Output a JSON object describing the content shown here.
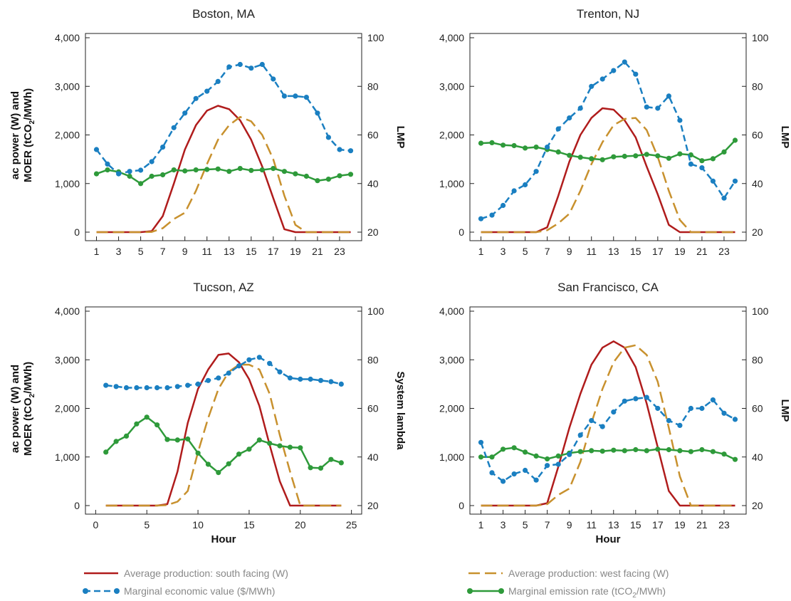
{
  "colors": {
    "south": "#b01c1c",
    "west": "#c8912e",
    "econ": "#1a7fc1",
    "emission": "#2e9a3a",
    "axis": "#222222"
  },
  "legend": {
    "south": "Average production: south facing (W)",
    "west": "Average production: west facing (W)",
    "econ": "Marginal economic value ($/MWh)",
    "emission_pre": "Marginal emission rate (tCO",
    "emission_sub": "2",
    "emission_post": "/MWh)"
  },
  "left_label": {
    "line1": "ac power (W) and",
    "line2_pre": "MOER (tCO",
    "line2_sub": "2",
    "line2_post": "/MWh)"
  },
  "chart_data": [
    {
      "type": "line",
      "title": "Boston, MA",
      "xlabel": "",
      "ylabel_left": "ac power (W) and MOER (tCO2/MWh)",
      "ylabel_right": "LMP",
      "x": [
        1,
        2,
        3,
        4,
        5,
        6,
        7,
        8,
        9,
        10,
        11,
        12,
        13,
        14,
        15,
        16,
        17,
        18,
        19,
        20,
        21,
        22,
        23,
        24
      ],
      "xticks": [
        1,
        3,
        5,
        7,
        9,
        11,
        13,
        15,
        17,
        19,
        21,
        23
      ],
      "xlim": [
        0,
        25
      ],
      "ylim_left": [
        0,
        4000
      ],
      "ylim_right": [
        20,
        100
      ],
      "yticks_left": [
        "0",
        "1,000",
        "2,000",
        "3,000",
        "4,000"
      ],
      "yticks_right": [
        "20",
        "40",
        "60",
        "80",
        "100"
      ],
      "series": [
        {
          "name": "Average production: south facing (W)",
          "axis": "left",
          "values": [
            0,
            0,
            0,
            0,
            0,
            20,
            330,
            1000,
            1700,
            2200,
            2500,
            2600,
            2530,
            2300,
            1900,
            1350,
            700,
            60,
            0,
            0,
            0,
            0,
            0,
            0
          ]
        },
        {
          "name": "Average production: west facing (W)",
          "axis": "left",
          "values": [
            0,
            0,
            0,
            0,
            0,
            5,
            80,
            270,
            400,
            850,
            1400,
            1900,
            2200,
            2370,
            2280,
            2000,
            1500,
            750,
            150,
            0,
            0,
            0,
            0,
            0
          ]
        },
        {
          "name": "Marginal economic value ($/MWh)",
          "axis": "right",
          "values": [
            54,
            48,
            44,
            45,
            45.5,
            49,
            55,
            63,
            69,
            75,
            78,
            82,
            88,
            89,
            87.5,
            89,
            83,
            76,
            76,
            75.5,
            69,
            59,
            54,
            53.5
          ]
        },
        {
          "name": "Marginal emission rate (tCO2/MWh)",
          "axis": "left",
          "values": [
            1200,
            1280,
            1240,
            1150,
            1000,
            1150,
            1180,
            1280,
            1260,
            1280,
            1290,
            1300,
            1250,
            1310,
            1270,
            1280,
            1310,
            1250,
            1200,
            1150,
            1060,
            1090,
            1160,
            1190
          ]
        }
      ]
    },
    {
      "type": "line",
      "title": "Trenton, NJ",
      "xlabel": "",
      "ylabel_left": "",
      "ylabel_right": "LMP",
      "x": [
        1,
        2,
        3,
        4,
        5,
        6,
        7,
        8,
        9,
        10,
        11,
        12,
        13,
        14,
        15,
        16,
        17,
        18,
        19,
        20,
        21,
        22,
        23,
        24
      ],
      "xticks": [
        1,
        3,
        5,
        7,
        9,
        11,
        13,
        15,
        17,
        19,
        21,
        23
      ],
      "xlim": [
        0,
        25
      ],
      "ylim_left": [
        0,
        4000
      ],
      "ylim_right": [
        20,
        100
      ],
      "yticks_left": [
        "0",
        "1,000",
        "2,000",
        "3,000",
        "4,000"
      ],
      "yticks_right": [
        "20",
        "40",
        "60",
        "80",
        "100"
      ],
      "series": [
        {
          "name": "Average production: south facing (W)",
          "axis": "left",
          "values": [
            0,
            0,
            0,
            0,
            0,
            0,
            100,
            750,
            1450,
            2000,
            2350,
            2550,
            2520,
            2300,
            1950,
            1350,
            780,
            150,
            0,
            0,
            0,
            0,
            0,
            0
          ]
        },
        {
          "name": "Average production: west facing (W)",
          "axis": "left",
          "values": [
            0,
            0,
            0,
            0,
            0,
            0,
            40,
            180,
            380,
            850,
            1400,
            1850,
            2200,
            2330,
            2350,
            2100,
            1550,
            850,
            250,
            0,
            0,
            0,
            0,
            0
          ]
        },
        {
          "name": "Marginal economic value ($/MWh)",
          "axis": "right",
          "values": [
            25.5,
            27,
            31,
            37,
            39.5,
            45,
            55,
            62.5,
            67,
            71,
            80,
            83,
            86.5,
            90,
            85,
            71.5,
            71,
            76,
            66,
            48,
            46.5,
            41,
            34,
            41
          ]
        },
        {
          "name": "Marginal emission rate (tCO2/MWh)",
          "axis": "left",
          "values": [
            1830,
            1840,
            1790,
            1780,
            1730,
            1750,
            1700,
            1650,
            1580,
            1540,
            1510,
            1490,
            1550,
            1560,
            1570,
            1600,
            1570,
            1520,
            1610,
            1590,
            1470,
            1510,
            1650,
            1890
          ]
        }
      ]
    },
    {
      "type": "line",
      "title": "Tucson, AZ",
      "xlabel": "Hour",
      "ylabel_left": "ac power (W) and MOER (tCO2/MWh)",
      "ylabel_right": "System lambda",
      "x": [
        1,
        2,
        3,
        4,
        5,
        6,
        7,
        8,
        9,
        10,
        11,
        12,
        13,
        14,
        15,
        16,
        17,
        18,
        19,
        20,
        21,
        22,
        23,
        24
      ],
      "xticks": [
        0,
        5,
        10,
        15,
        20,
        25
      ],
      "xlim": [
        -1,
        26
      ],
      "ylim_left": [
        0,
        4000
      ],
      "ylim_right": [
        20,
        100
      ],
      "yticks_left": [
        "0",
        "1,000",
        "2,000",
        "3,000",
        "4,000"
      ],
      "yticks_right": [
        "20",
        "40",
        "60",
        "80",
        "100"
      ],
      "series": [
        {
          "name": "Average production: south facing (W)",
          "axis": "left",
          "values": [
            0,
            0,
            0,
            0,
            0,
            0,
            30,
            700,
            1700,
            2400,
            2800,
            3100,
            3130,
            2950,
            2600,
            2050,
            1250,
            500,
            0,
            0,
            0,
            0,
            0,
            0
          ]
        },
        {
          "name": "Average production: west facing (W)",
          "axis": "left",
          "values": [
            0,
            0,
            0,
            0,
            0,
            0,
            10,
            80,
            300,
            1100,
            1800,
            2400,
            2750,
            2900,
            2900,
            2800,
            2300,
            1450,
            700,
            0,
            0,
            0,
            0,
            0
          ]
        },
        {
          "name": "Marginal economic value ($/MWh)",
          "axis": "right",
          "values": [
            69.5,
            69,
            68.5,
            68.5,
            68.5,
            68.5,
            68.5,
            69,
            69.5,
            70,
            71.5,
            72.5,
            74.5,
            77.5,
            80,
            81,
            78.5,
            75,
            72.5,
            72,
            72,
            71.5,
            71,
            70
          ]
        },
        {
          "name": "Marginal emission rate (tCO2/MWh)",
          "axis": "left",
          "values": [
            1100,
            1320,
            1430,
            1680,
            1820,
            1660,
            1360,
            1350,
            1370,
            1080,
            850,
            680,
            860,
            1060,
            1160,
            1350,
            1280,
            1230,
            1200,
            1190,
            780,
            770,
            950,
            880
          ]
        }
      ]
    },
    {
      "type": "line",
      "title": "San Francisco, CA",
      "xlabel": "Hour",
      "ylabel_left": "",
      "ylabel_right": "LMP",
      "x": [
        1,
        2,
        3,
        4,
        5,
        6,
        7,
        8,
        9,
        10,
        11,
        12,
        13,
        14,
        15,
        16,
        17,
        18,
        19,
        20,
        21,
        22,
        23,
        24
      ],
      "xticks": [
        1,
        3,
        5,
        7,
        9,
        11,
        13,
        15,
        17,
        19,
        21,
        23
      ],
      "xlim": [
        0,
        25
      ],
      "ylim_left": [
        0,
        4000
      ],
      "ylim_right": [
        20,
        100
      ],
      "yticks_left": [
        "0",
        "1,000",
        "2,000",
        "3,000",
        "4,000"
      ],
      "yticks_right": [
        "20",
        "40",
        "60",
        "80",
        "100"
      ],
      "series": [
        {
          "name": "Average production: south facing (W)",
          "axis": "left",
          "values": [
            0,
            0,
            0,
            0,
            0,
            0,
            50,
            800,
            1600,
            2300,
            2900,
            3250,
            3380,
            3250,
            2850,
            2100,
            1200,
            300,
            0,
            0,
            0,
            0,
            0,
            0
          ]
        },
        {
          "name": "Average production: west facing (W)",
          "axis": "left",
          "values": [
            0,
            0,
            0,
            0,
            0,
            0,
            30,
            220,
            350,
            900,
            1700,
            2400,
            2950,
            3250,
            3300,
            3100,
            2550,
            1600,
            600,
            0,
            0,
            0,
            0,
            0
          ]
        },
        {
          "name": "Marginal economic value ($/MWh)",
          "axis": "right",
          "values": [
            46,
            33.5,
            30,
            33,
            34.5,
            30.5,
            36.5,
            37,
            41,
            49,
            55,
            52.5,
            58.5,
            63,
            64,
            64.5,
            60,
            55,
            53,
            60,
            60,
            63.5,
            58,
            55.5
          ]
        },
        {
          "name": "Marginal emission rate (tCO2/MWh)",
          "axis": "left",
          "values": [
            1000,
            1000,
            1160,
            1190,
            1100,
            1020,
            960,
            1020,
            1080,
            1110,
            1130,
            1120,
            1140,
            1130,
            1150,
            1130,
            1160,
            1150,
            1130,
            1110,
            1150,
            1110,
            1060,
            950
          ]
        }
      ]
    }
  ]
}
